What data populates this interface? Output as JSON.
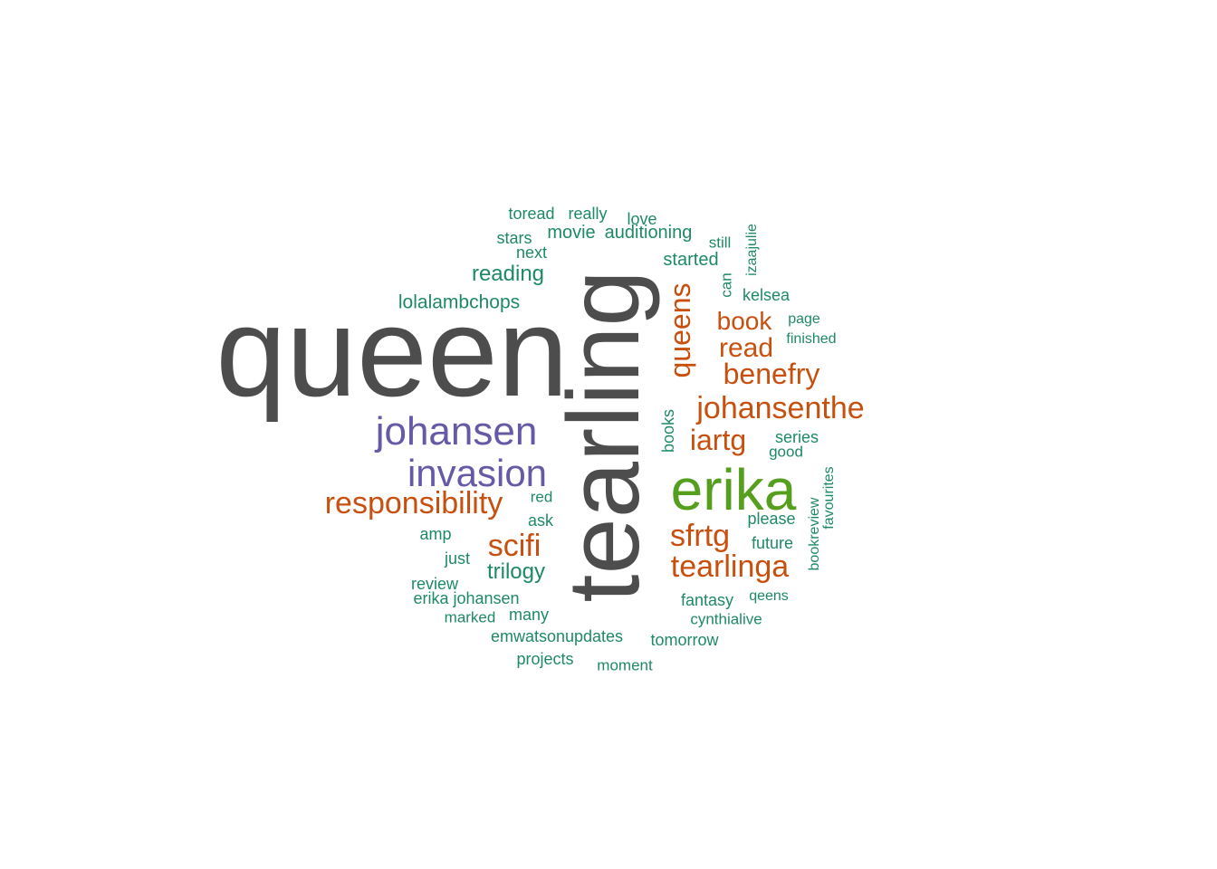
{
  "colors": {
    "gray": "#4D4D4D",
    "purple": "#6659A6",
    "green": "#559E1E",
    "orange": "#C8500F",
    "teal": "#1E8A64"
  },
  "words": [
    {
      "text": "queen",
      "color": "gray"
    },
    {
      "text": "tearling",
      "color": "gray"
    },
    {
      "text": "erika",
      "color": "green"
    },
    {
      "text": "johansen",
      "color": "purple"
    },
    {
      "text": "invasion",
      "color": "purple"
    },
    {
      "text": "responsibility",
      "color": "orange"
    },
    {
      "text": "johansenthe",
      "color": "orange"
    },
    {
      "text": "benefry",
      "color": "orange"
    },
    {
      "text": "queens",
      "color": "orange"
    },
    {
      "text": "read",
      "color": "orange"
    },
    {
      "text": "book",
      "color": "orange"
    },
    {
      "text": "iartg",
      "color": "orange"
    },
    {
      "text": "sfrtg",
      "color": "orange"
    },
    {
      "text": "tearlinga",
      "color": "orange"
    },
    {
      "text": "scifi",
      "color": "orange"
    },
    {
      "text": "trilogy",
      "color": "teal"
    },
    {
      "text": "reading",
      "color": "teal"
    },
    {
      "text": "lolalambchops",
      "color": "teal"
    },
    {
      "text": "toread",
      "color": "teal"
    },
    {
      "text": "really",
      "color": "teal"
    },
    {
      "text": "love",
      "color": "teal"
    },
    {
      "text": "stars",
      "color": "teal"
    },
    {
      "text": "movie",
      "color": "teal"
    },
    {
      "text": "auditioning",
      "color": "teal"
    },
    {
      "text": "next",
      "color": "teal"
    },
    {
      "text": "still",
      "color": "teal"
    },
    {
      "text": "izaajulie",
      "color": "teal"
    },
    {
      "text": "started",
      "color": "teal"
    },
    {
      "text": "can",
      "color": "teal"
    },
    {
      "text": "kelsea",
      "color": "teal"
    },
    {
      "text": "page",
      "color": "teal"
    },
    {
      "text": "finished",
      "color": "teal"
    },
    {
      "text": "books",
      "color": "teal"
    },
    {
      "text": "series",
      "color": "teal"
    },
    {
      "text": "good",
      "color": "teal"
    },
    {
      "text": "favourites",
      "color": "teal"
    },
    {
      "text": "bookreview",
      "color": "teal"
    },
    {
      "text": "please",
      "color": "teal"
    },
    {
      "text": "future",
      "color": "teal"
    },
    {
      "text": "red",
      "color": "teal"
    },
    {
      "text": "ask",
      "color": "teal"
    },
    {
      "text": "amp",
      "color": "teal"
    },
    {
      "text": "just",
      "color": "teal"
    },
    {
      "text": "review",
      "color": "teal"
    },
    {
      "text": "erika johansen",
      "color": "teal"
    },
    {
      "text": "marked",
      "color": "teal"
    },
    {
      "text": "many",
      "color": "teal"
    },
    {
      "text": "fantasy",
      "color": "teal"
    },
    {
      "text": "qeens",
      "color": "teal"
    },
    {
      "text": "cynthialive",
      "color": "teal"
    },
    {
      "text": "emwatsonupdates",
      "color": "teal"
    },
    {
      "text": "tomorrow",
      "color": "teal"
    },
    {
      "text": "projects",
      "color": "teal"
    },
    {
      "text": "moment",
      "color": "teal"
    }
  ]
}
